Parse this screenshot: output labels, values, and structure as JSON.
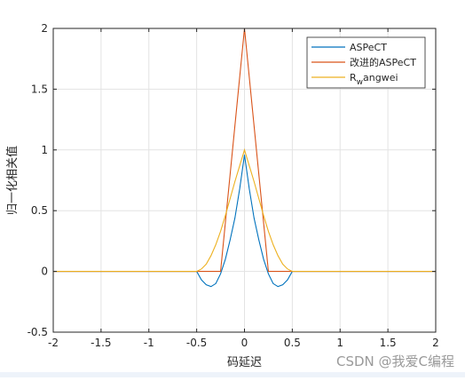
{
  "chart_data": {
    "type": "line",
    "xlabel": "码延迟",
    "ylabel": "归一化相关值",
    "xlim": [
      -2,
      2
    ],
    "ylim": [
      -0.5,
      2
    ],
    "xticks": [
      "-2",
      "-1.5",
      "-1",
      "-0.5",
      "0",
      "0.5",
      "1",
      "1.5",
      "2"
    ],
    "yticks": [
      "-0.5",
      "0",
      "0.5",
      "1",
      "1.5",
      "2"
    ],
    "grid": true,
    "legend_position": "top-right",
    "series": [
      {
        "name": "ASPeCT",
        "color": "#0072bd",
        "x": [
          -2,
          -0.5,
          -0.45,
          -0.4,
          -0.35,
          -0.3,
          -0.25,
          -0.2,
          -0.15,
          -0.1,
          -0.05,
          0,
          0.05,
          0.1,
          0.15,
          0.2,
          0.25,
          0.3,
          0.35,
          0.4,
          0.45,
          0.5,
          2
        ],
        "y": [
          0,
          0,
          -0.07,
          -0.11,
          -0.125,
          -0.1,
          -0.02,
          0.1,
          0.26,
          0.44,
          0.68,
          0.96,
          0.68,
          0.44,
          0.26,
          0.1,
          -0.02,
          -0.1,
          -0.125,
          -0.11,
          -0.07,
          0,
          0
        ]
      },
      {
        "name": "改进的ASPeCT",
        "color": "#d95319",
        "x": [
          -2,
          -0.25,
          0,
          0.25,
          2
        ],
        "y": [
          0,
          0,
          2,
          0,
          0
        ]
      },
      {
        "name_parts": [
          "R",
          "w",
          "angwei"
        ],
        "color": "#edb120",
        "x": [
          -2,
          -0.5,
          -0.45,
          -0.4,
          -0.35,
          -0.3,
          -0.25,
          -0.2,
          -0.15,
          -0.1,
          -0.05,
          0,
          0.05,
          0.1,
          0.15,
          0.2,
          0.25,
          0.3,
          0.35,
          0.4,
          0.45,
          0.5,
          2
        ],
        "y": [
          0,
          0,
          0.02,
          0.06,
          0.13,
          0.22,
          0.33,
          0.46,
          0.6,
          0.74,
          0.87,
          1.0,
          0.87,
          0.74,
          0.6,
          0.46,
          0.33,
          0.22,
          0.13,
          0.06,
          0.02,
          0,
          0
        ]
      }
    ]
  },
  "watermark": "CSDN @我爱C编程"
}
